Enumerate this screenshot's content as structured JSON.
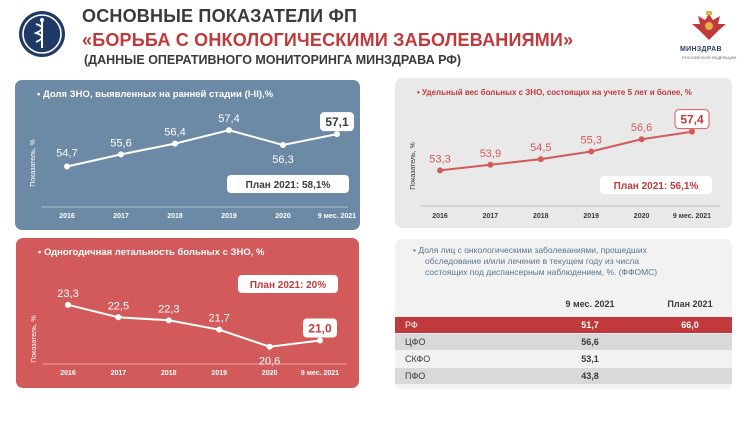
{
  "header": {
    "line1": "ОСНОВНЫЕ ПОКАЗАТЕЛИ ФП",
    "line2": "«БОРЬБА С ОНКОЛОГИЧЕСКИМИ ЗАБОЛЕВАНИЯМИ»",
    "line3": "(ДАННЫЕ ОПЕРАТИВНОГО МОНИТОРИНГА МИНЗДРАВА РФ)",
    "logo_right_text": "МИНЗДРАВ",
    "logo_right_sub": "РОССИЙСКОЙ ФЕДЕРАЦИИ"
  },
  "colors": {
    "blue_panel": "#6c8aa5",
    "red_panel": "#d25a5a",
    "accent_red": "#c0393b",
    "dark_text": "#3a3a3a"
  },
  "chart_data": [
    {
      "type": "line",
      "title": "Доля ЗНО, выявленных на ранней стадии (I-II),%",
      "ylabel": "Показатель, %",
      "categories": [
        "2016",
        "2017",
        "2018",
        "2019",
        "2020",
        "9 мес. 2021"
      ],
      "values": [
        54.7,
        55.6,
        56.4,
        57.4,
        56.3,
        57.1
      ],
      "labels": [
        "54,7",
        "55,6",
        "56,4",
        "57,4",
        "56,3",
        "57,1"
      ],
      "plan": "План 2021: 58,1%",
      "ylim": [
        54.0,
        58.0
      ]
    },
    {
      "type": "line",
      "title": "Одногодичная летальность больных с ЗНО, %",
      "ylabel": "Показатель, %",
      "categories": [
        "2016",
        "2017",
        "2018",
        "2019",
        "2020",
        "9 мес. 2021"
      ],
      "values": [
        23.3,
        22.5,
        22.3,
        21.7,
        20.6,
        21.0
      ],
      "labels": [
        "23,3",
        "22,5",
        "22,3",
        "21,7",
        "20,6",
        "21,0"
      ],
      "plan": "План 2021: 20%",
      "ylim": [
        20.0,
        24.0
      ]
    },
    {
      "type": "line",
      "title": "Удельный вес больных с ЗНО, состоящих на учете 5 лет и более, %",
      "ylabel": "Показатель, %",
      "categories": [
        "2016",
        "2017",
        "2018",
        "2019",
        "2020",
        "9 мес. 2021"
      ],
      "values": [
        53.3,
        53.9,
        54.5,
        55.3,
        56.6,
        57.4
      ],
      "labels": [
        "53,3",
        "53,9",
        "54,5",
        "55,3",
        "56,6",
        "57,4"
      ],
      "plan": "План 2021: 56,1%",
      "ylim": [
        52.5,
        58.0
      ]
    },
    {
      "type": "table",
      "title": "Доля лиц с онкологическими заболеваниями, прошедших обследование и/или лечение в текущем году из числа состоящих под диспансерным наблюдением, %. (ФФОМС)",
      "title_lines": [
        "Доля лиц с онкологическими заболеваниями, прошедших",
        "обследование и/или лечение в текущем году из числа",
        "состоящих под диспансерным наблюдением, %. (ФФОМС)"
      ],
      "columns": [
        "",
        "9 мес. 2021",
        "План 2021"
      ],
      "rows": [
        [
          "РФ",
          "51,7",
          "66,0"
        ],
        [
          "ЦФО",
          "56,6",
          ""
        ],
        [
          "СКФО",
          "53,1",
          ""
        ],
        [
          "ПФО",
          "43,8",
          ""
        ]
      ]
    }
  ]
}
